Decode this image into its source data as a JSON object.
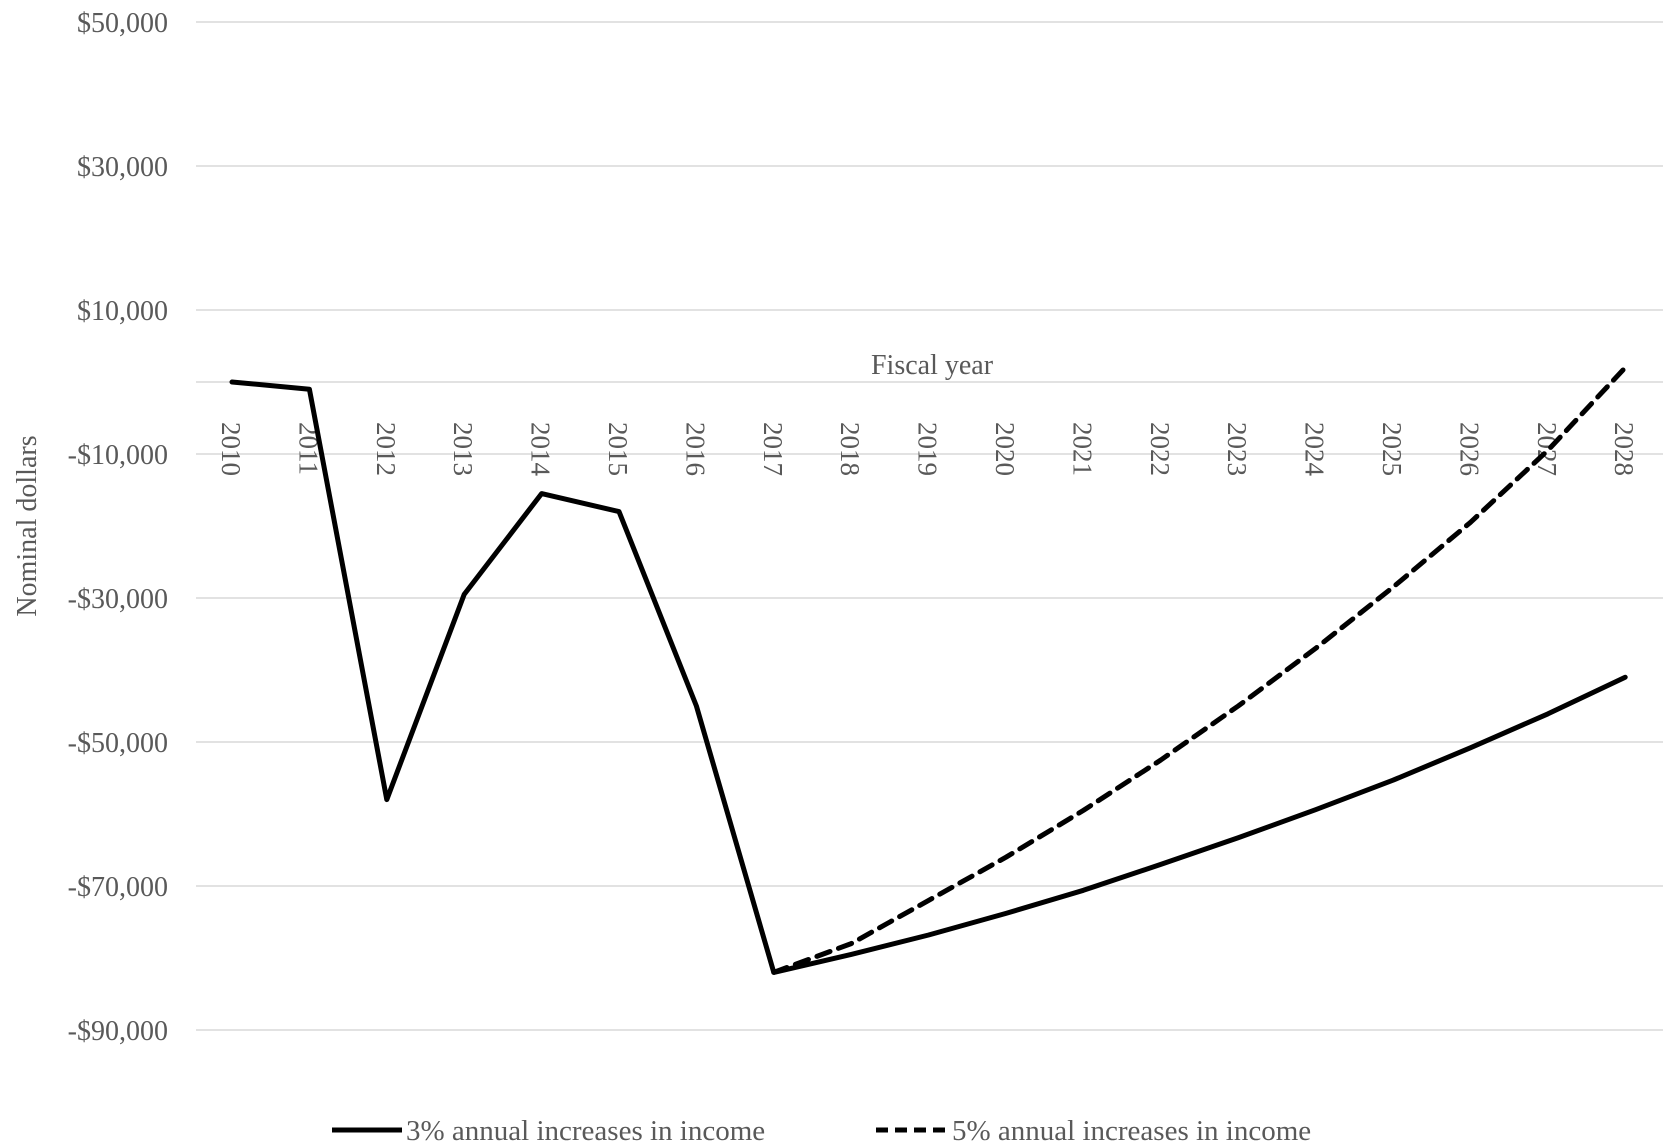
{
  "chart_data": {
    "type": "line",
    "xlabel": "Fiscal year",
    "ylabel": "Nominal dollars",
    "categories": [
      "2010",
      "2011",
      "2012",
      "2013",
      "2014",
      "2015",
      "2016",
      "2017",
      "2018",
      "2019",
      "2020",
      "2021",
      "2022",
      "2023",
      "2024",
      "2025",
      "2026",
      "2027",
      "2028"
    ],
    "yticks": [
      50000,
      30000,
      10000,
      -10000,
      -30000,
      -50000,
      -70000,
      -90000
    ],
    "ytick_labels": [
      "$50,000",
      "$30,000",
      "$10,000",
      "-$10,000",
      "-$30,000",
      "-$50,000",
      "-$70,000",
      "-$90,000"
    ],
    "ylim": [
      -90000,
      50000
    ],
    "grid": true,
    "legend_position": "bottom",
    "series": [
      {
        "name": "3% annual increases in income",
        "style": "solid",
        "color": "#000000",
        "values": [
          0,
          -1000,
          -58000,
          -29500,
          -15500,
          -18000,
          -45000,
          -82000,
          -79500,
          -76800,
          -73800,
          -70600,
          -67000,
          -63300,
          -59400,
          -55300,
          -50800,
          -46100,
          -41000
        ]
      },
      {
        "name": "5% annual increases in income",
        "style": "dashed",
        "color": "#000000",
        "values": [
          null,
          null,
          null,
          null,
          null,
          null,
          null,
          -82000,
          -78000,
          -72000,
          -66000,
          -59500,
          -52500,
          -45000,
          -37000,
          -28500,
          -19500,
          -9500,
          2000
        ]
      }
    ]
  }
}
